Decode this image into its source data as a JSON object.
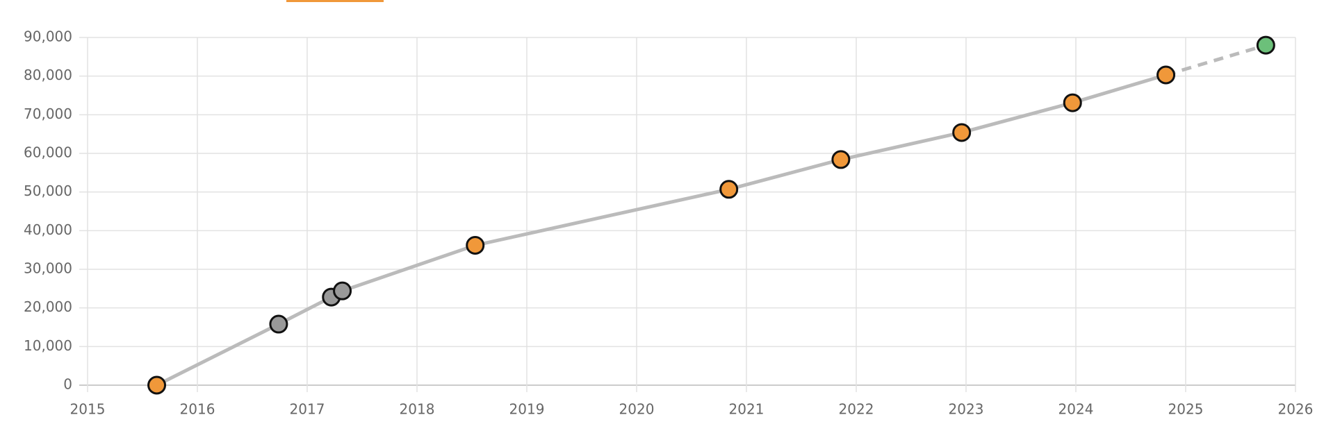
{
  "chart_data": {
    "type": "line",
    "x": [
      2015.63,
      2016.74,
      2017.22,
      2017.32,
      2018.53,
      2020.84,
      2021.86,
      2022.96,
      2023.97,
      2024.82,
      2025.73
    ],
    "series": [
      {
        "color": "#bbbbbb",
        "values": [
          0,
          15800,
          22800,
          24400,
          36200,
          50700,
          58400,
          65400,
          73100,
          80300,
          88000
        ],
        "point_colors": [
          "#f0983a",
          "#999999",
          "#999999",
          "#999999",
          "#f0983a",
          "#f0983a",
          "#f0983a",
          "#f0983a",
          "#f0983a",
          "#f0983a",
          "#6cc07a"
        ],
        "dashed_last_segment": true
      }
    ],
    "xlim": [
      2015,
      2026
    ],
    "xticks": [
      2015,
      2016,
      2017,
      2018,
      2019,
      2020,
      2021,
      2022,
      2023,
      2024,
      2025,
      2026
    ],
    "ylim": [
      0,
      90000
    ],
    "yticks": [
      0,
      {
        "value": 10000,
        "label": "10,000"
      },
      {
        "value": 20000,
        "label": "20,000"
      },
      {
        "value": 30000,
        "label": "30,000"
      },
      {
        "value": 40000,
        "label": "40,000"
      },
      {
        "value": 50000,
        "label": "50,000"
      },
      {
        "value": 60000,
        "label": "60,000"
      },
      {
        "value": 70000,
        "label": "70,000"
      },
      {
        "value": 80000,
        "label": "80,000"
      },
      {
        "value": 90000,
        "label": "90,000"
      }
    ],
    "grid": true
  }
}
